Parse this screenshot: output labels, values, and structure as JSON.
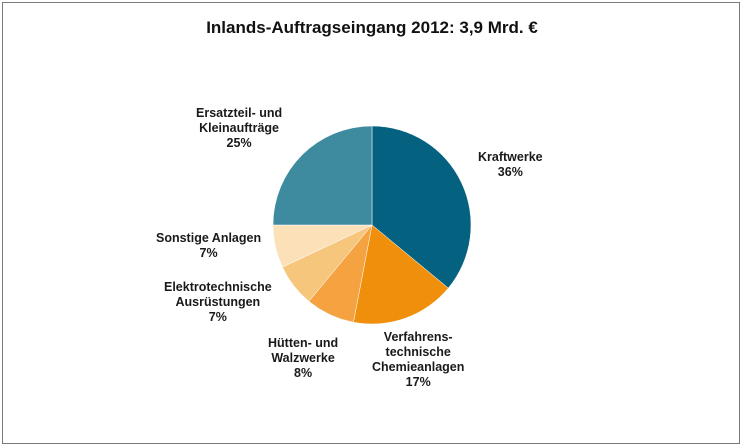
{
  "chart_data": {
    "type": "pie",
    "title": "Inlands-Auftragseingang 2012: 3,9 Mrd. €",
    "slices": [
      {
        "label_lines": [
          "Kraftwerke"
        ],
        "pct_label": "36%",
        "value": 36,
        "color": "#046180"
      },
      {
        "label_lines": [
          "Verfahrens-",
          "technische",
          "Chemieanlagen"
        ],
        "pct_label": "17%",
        "value": 17,
        "color": "#f08f0c"
      },
      {
        "label_lines": [
          "Hütten- und",
          "Walzwerke"
        ],
        "pct_label": "8%",
        "value": 8,
        "color": "#f4a340"
      },
      {
        "label_lines": [
          "Elektrotechnische",
          "Ausrüstungen"
        ],
        "pct_label": "7%",
        "value": 7,
        "color": "#f7c67d"
      },
      {
        "label_lines": [
          "Sonstige Anlagen"
        ],
        "pct_label": "7%",
        "value": 7,
        "color": "#fbe0b8"
      },
      {
        "label_lines": [
          "Ersatzteil- und",
          "Kleinaufträge"
        ],
        "pct_label": "25%",
        "value": 25,
        "color": "#3e8ba0"
      }
    ]
  }
}
